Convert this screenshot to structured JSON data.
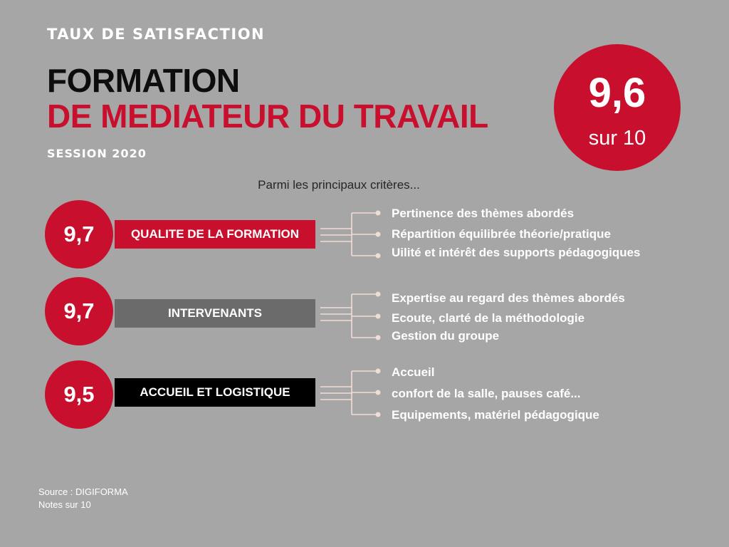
{
  "header": {
    "kicker": "TAUX DE SATISFACTION",
    "title_line1": "FORMATION",
    "title_line2": "DE MEDIATEUR DU TRAVAIL",
    "session": "SESSION 2020"
  },
  "overall": {
    "score": "9,6",
    "unit": "sur 10"
  },
  "intro": "Parmi les principaux critères...",
  "categories": [
    {
      "score": "9,7",
      "label": "QUALITE DE LA FORMATION",
      "criteria": [
        "Pertinence des thèmes abordés",
        "Répartition équilibrée théorie/pratique",
        "Uilité et intérêt des supports pédagogiques"
      ]
    },
    {
      "score": "9,7",
      "label": "INTERVENANTS",
      "criteria": [
        "Expertise au regard des  thèmes abordés",
        "Ecoute, clarté de la méthodologie",
        "Gestion du groupe"
      ]
    },
    {
      "score": "9,5",
      "label": "ACCUEIL ET LOGISTIQUE",
      "criteria": [
        "Accueil",
        "confort de la salle, pauses café...",
        "Equipements, matériel pédagogique"
      ]
    }
  ],
  "footer": {
    "source": "Source : DIGIFORMA",
    "notes": "Notes sur 10"
  },
  "colors": {
    "background": "#a6a6a6",
    "accent_red": "#c8102e",
    "banner_gray": "#6b6b6b",
    "banner_black": "#000000",
    "connector": "#f2dcd6"
  }
}
